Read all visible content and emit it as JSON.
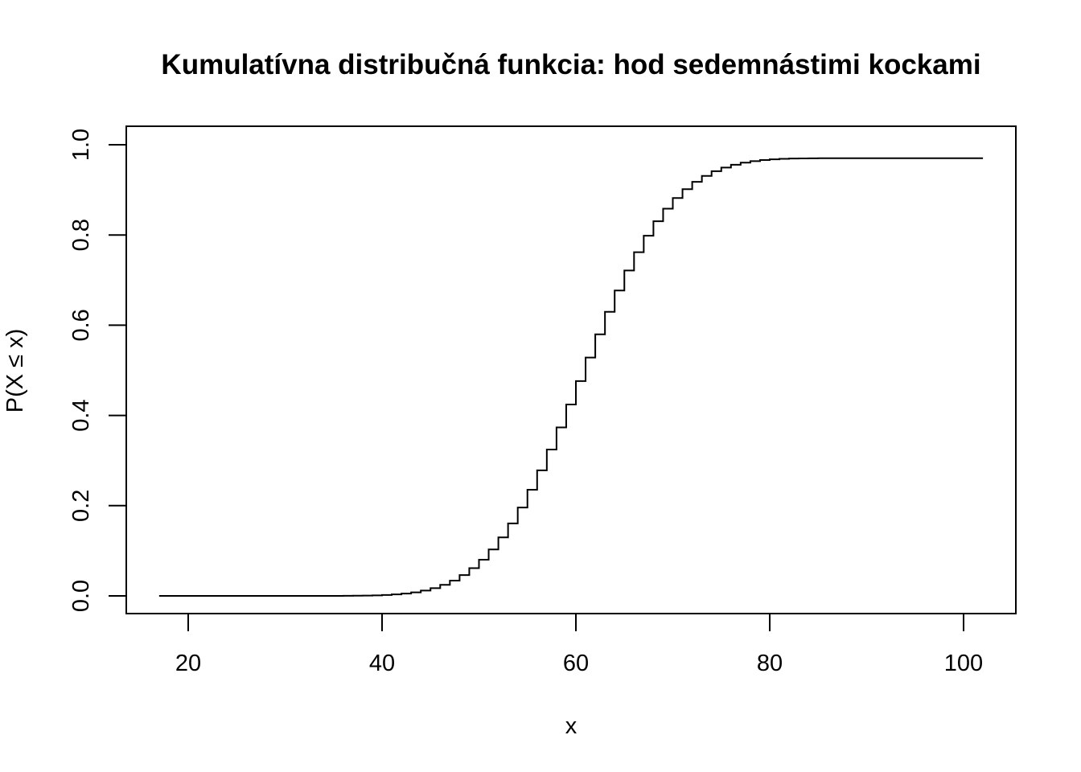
{
  "chart_data": {
    "type": "line",
    "step": true,
    "title": "Kumulatívna distribučná funkcia: hod sedemnástimi kockami",
    "xlabel": "x",
    "ylabel": "P(X ≤ x)",
    "xlim": [
      17,
      102
    ],
    "ylim": [
      0,
      1
    ],
    "x_ticks": [
      20,
      40,
      60,
      80,
      100
    ],
    "x_tick_labels": [
      "20",
      "40",
      "60",
      "80",
      "100"
    ],
    "y_ticks": [
      0,
      0.2,
      0.4,
      0.6,
      0.8,
      1
    ],
    "y_tick_labels": [
      "0.0",
      "0.2",
      "0.4",
      "0.6",
      "0.8",
      "1.0"
    ],
    "grid": false,
    "legend": "none",
    "line_color": "#000000",
    "series": [
      {
        "x": [
          17,
          18,
          19,
          20,
          21,
          22,
          23,
          24,
          25,
          26,
          27,
          28,
          29,
          30,
          31,
          32,
          33,
          34,
          35,
          36,
          37,
          38,
          39,
          40,
          41,
          42,
          43,
          44,
          45,
          46,
          47,
          48,
          49,
          50,
          51,
          52,
          53,
          54,
          55,
          56,
          57,
          58,
          59,
          60,
          61,
          62,
          63,
          64,
          65,
          66,
          67,
          68,
          69,
          70,
          71,
          72,
          73,
          74,
          75,
          76,
          77,
          78,
          79,
          80,
          81,
          82,
          83,
          84,
          85,
          86,
          87,
          88,
          89,
          90,
          91,
          92,
          93,
          94,
          95,
          96,
          97,
          98,
          99,
          100,
          101,
          102
        ],
        "values": [
          0,
          0,
          0,
          0,
          0,
          0,
          0,
          0,
          0,
          0,
          0,
          0,
          0,
          0,
          0,
          0,
          0,
          0,
          0.0001,
          0.0002,
          0.0004,
          0.0007,
          0.0012,
          0.002,
          0.0033,
          0.0052,
          0.0079,
          0.0118,
          0.0171,
          0.0244,
          0.0338,
          0.0461,
          0.0614,
          0.0803,
          0.1029,
          0.1297,
          0.1607,
          0.1959,
          0.2352,
          0.2782,
          0.3245,
          0.3734,
          0.4242,
          0.4761,
          0.5283,
          0.5797,
          0.6296,
          0.677,
          0.7213,
          0.7619,
          0.7983,
          0.8304,
          0.8582,
          0.8818,
          0.9016,
          0.9178,
          0.9309,
          0.9413,
          0.9494,
          0.9556,
          0.9603,
          0.9637,
          0.9661,
          0.9677,
          0.9688,
          0.9694,
          0.9698,
          0.97,
          0.9701,
          0.9702,
          0.9702,
          0.9702,
          0.9702,
          0.9702,
          0.9702,
          0.9702,
          0.9702,
          0.9702,
          0.9702,
          0.9702,
          0.9702,
          0.9702,
          0.9702,
          0.9702,
          0.9702,
          0.9702
        ]
      }
    ]
  }
}
